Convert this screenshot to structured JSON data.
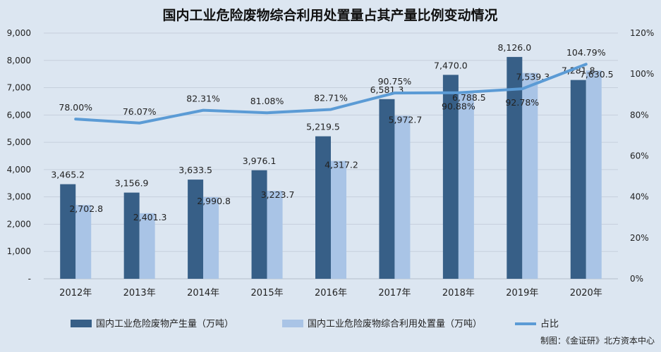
{
  "chart_data": {
    "type": "bar",
    "title": "国内工业危险废物综合利用处置量占其产量比例变动情况",
    "categories": [
      "2012年",
      "2013年",
      "2014年",
      "2015年",
      "2016年",
      "2017年",
      "2018年",
      "2019年",
      "2020年"
    ],
    "series": [
      {
        "name": "国内工业危险废物产生量（万吨）",
        "type": "bar",
        "axis": "left",
        "color": "#375f87",
        "values": [
          3465.2,
          3156.9,
          3633.5,
          3976.1,
          5219.5,
          6581.3,
          7470.0,
          8126.0,
          7281.8
        ],
        "labels": [
          "3,465.2",
          "3,156.9",
          "3,633.5",
          "3,976.1",
          "5,219.5",
          "6,581.3",
          "7,470.0",
          "8,126.0",
          "7,281.8"
        ]
      },
      {
        "name": "国内工业危险废物综合利用处置量（万吨）",
        "type": "bar",
        "axis": "left",
        "color": "#a9c4e6",
        "values": [
          2702.8,
          2401.3,
          2990.8,
          3223.7,
          4317.2,
          5972.7,
          6788.5,
          7539.3,
          7630.5
        ],
        "labels": [
          "2,702.8",
          "2,401.3",
          "2,990.8",
          "3,223.7",
          "4,317.2",
          "5,972.7",
          "6,788.5",
          "7,539.3",
          "7,630.5"
        ]
      },
      {
        "name": "占比",
        "type": "line",
        "axis": "right",
        "color": "#5b9bd5",
        "values": [
          78.0,
          76.07,
          82.31,
          81.08,
          82.71,
          90.75,
          90.88,
          92.78,
          104.79
        ],
        "labels": [
          "78.00%",
          "76.07%",
          "82.31%",
          "81.08%",
          "82.71%",
          "90.75%",
          "90.88%",
          "92.78%",
          "104.79%"
        ]
      }
    ],
    "y_left": {
      "ylim": [
        0,
        9000
      ],
      "ticks": [
        0,
        1000,
        2000,
        3000,
        4000,
        5000,
        6000,
        7000,
        8000,
        9000
      ],
      "tick_labels": [
        "-",
        "1,000",
        "2,000",
        "3,000",
        "4,000",
        "5,000",
        "6,000",
        "7,000",
        "8,000",
        "9,000"
      ]
    },
    "y_right": {
      "ylim": [
        0,
        120
      ],
      "ticks": [
        0,
        20,
        40,
        60,
        80,
        100,
        120
      ],
      "tick_labels": [
        "0%",
        "20%",
        "40%",
        "60%",
        "80%",
        "100%",
        "120%"
      ]
    },
    "grid": true,
    "legend": "bottom",
    "source": "制图：《金证研》北方资本中心"
  }
}
